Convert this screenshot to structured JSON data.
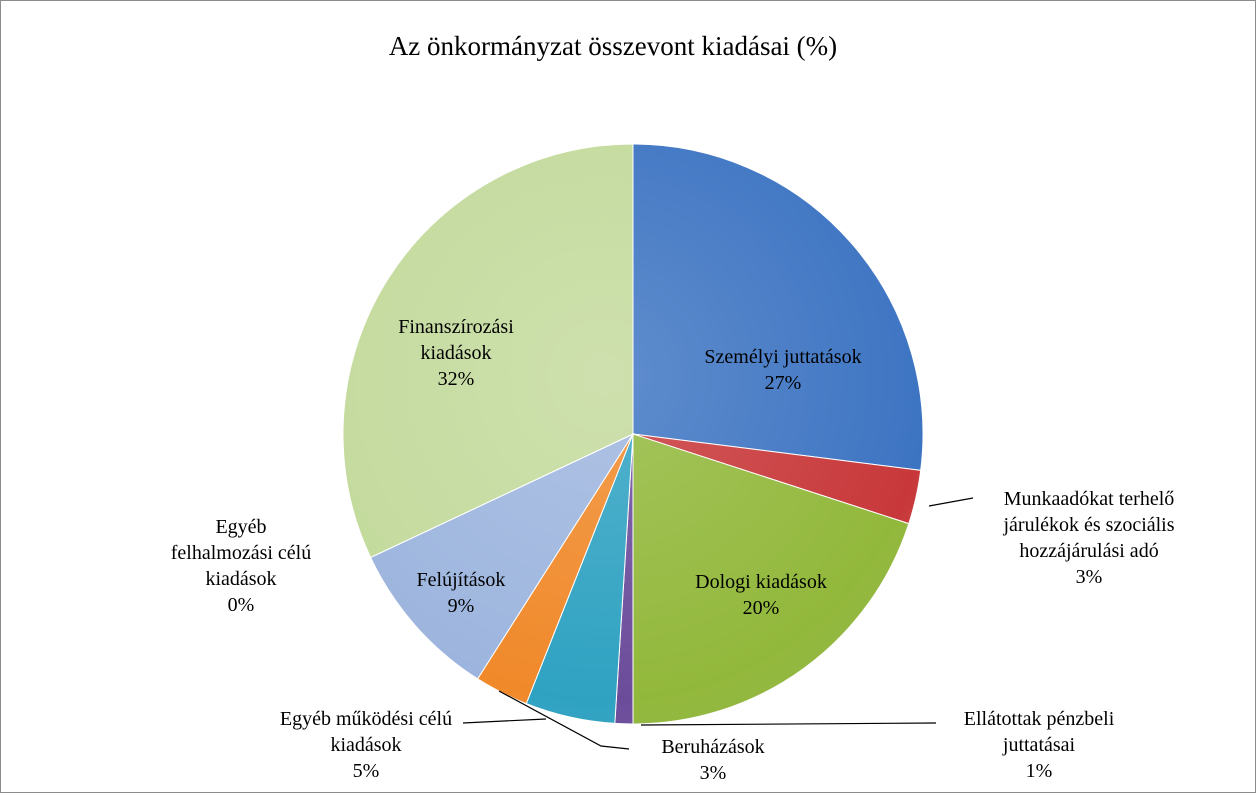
{
  "chart_data": {
    "type": "pie",
    "title": "Az önkormányzat összevont kiadásai (%)",
    "categories": [
      "Személyi juttatások",
      "Munkaadókat terhelő járulékok és szociális hozzájárulási adó",
      "Dologi kiadások",
      "Ellátottak pénzbeli juttatásai",
      "Egyéb működési célú kiadások",
      "Beruházások",
      "Felújítások",
      "Egyéb felhalmozási célú kiadások",
      "Finanszírozási kiadások"
    ],
    "values": [
      27,
      3,
      20,
      1,
      5,
      3,
      9,
      0,
      32
    ],
    "value_labels": [
      "27%",
      "3%",
      "20%",
      "1%",
      "5%",
      "3%",
      "9%",
      "0%",
      "32%"
    ],
    "colors": [
      "#3d74c2",
      "#c8383a",
      "#92b83b",
      "#6b4c9b",
      "#2fa2c2",
      "#f0892a",
      "#9db5de",
      "#a6a6a6",
      "#c3da9c"
    ]
  }
}
